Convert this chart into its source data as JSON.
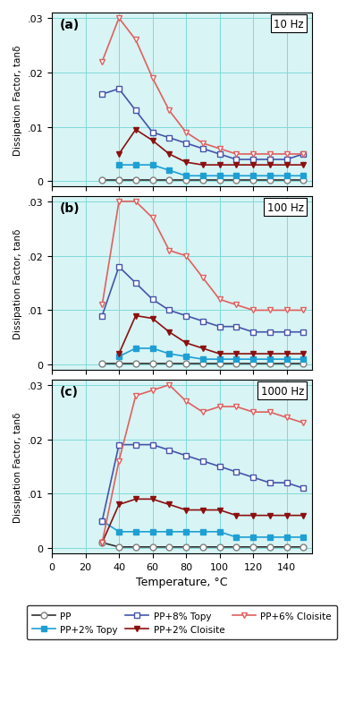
{
  "temperature": [
    30,
    40,
    50,
    60,
    70,
    80,
    90,
    100,
    110,
    120,
    130,
    140,
    150
  ],
  "panels": [
    {
      "label": "(a)",
      "freq": "10 Hz",
      "PP": [
        0.0002,
        0.0002,
        0.0002,
        0.0002,
        0.0002,
        0.0002,
        0.0002,
        0.0002,
        0.0002,
        0.0002,
        0.0002,
        0.0002,
        0.0002
      ],
      "PP2Topy": [
        null,
        0.003,
        0.003,
        0.003,
        0.002,
        0.001,
        0.001,
        0.001,
        0.001,
        0.001,
        0.001,
        0.001,
        0.001
      ],
      "PP8Topy": [
        0.016,
        0.017,
        0.013,
        0.009,
        0.008,
        0.007,
        0.006,
        0.005,
        0.004,
        0.004,
        0.004,
        0.004,
        0.005
      ],
      "PP2Cloisite": [
        null,
        0.005,
        0.0095,
        0.0075,
        0.005,
        0.0035,
        0.003,
        0.003,
        0.003,
        0.003,
        0.003,
        0.003,
        0.003
      ],
      "PP6Cloisite": [
        0.022,
        0.03,
        0.026,
        0.019,
        0.013,
        0.009,
        0.007,
        0.006,
        0.005,
        0.005,
        0.005,
        0.005,
        0.005
      ]
    },
    {
      "label": "(b)",
      "freq": "100 Hz",
      "PP": [
        0.0002,
        0.0002,
        0.0002,
        0.0002,
        0.0002,
        0.0002,
        0.0002,
        0.0002,
        0.0002,
        0.0002,
        0.0002,
        0.0002,
        0.0002
      ],
      "PP2Topy": [
        null,
        0.0015,
        0.003,
        0.003,
        0.002,
        0.0015,
        0.001,
        0.001,
        0.001,
        0.001,
        0.001,
        0.001,
        0.001
      ],
      "PP8Topy": [
        0.009,
        0.018,
        0.015,
        0.012,
        0.01,
        0.009,
        0.008,
        0.007,
        0.007,
        0.006,
        0.006,
        0.006,
        0.006
      ],
      "PP2Cloisite": [
        null,
        0.002,
        0.009,
        0.0085,
        0.006,
        0.004,
        0.003,
        0.002,
        0.002,
        0.002,
        0.002,
        0.002,
        0.002
      ],
      "PP6Cloisite": [
        0.011,
        0.03,
        0.03,
        0.027,
        0.021,
        0.02,
        0.016,
        0.012,
        0.011,
        0.01,
        0.01,
        0.01,
        0.01
      ]
    },
    {
      "label": "(c)",
      "freq": "1000 Hz",
      "PP": [
        0.001,
        0.0002,
        0.0002,
        0.0002,
        0.0002,
        0.0002,
        0.0002,
        0.0002,
        0.0002,
        0.0002,
        0.0002,
        0.0002,
        0.0002
      ],
      "PP2Topy": [
        0.005,
        0.003,
        0.003,
        0.003,
        0.003,
        0.003,
        0.003,
        0.003,
        0.002,
        0.002,
        0.002,
        0.002,
        0.002
      ],
      "PP8Topy": [
        0.005,
        0.019,
        0.019,
        0.019,
        0.018,
        0.017,
        0.016,
        0.015,
        0.014,
        0.013,
        0.012,
        0.012,
        0.011
      ],
      "PP2Cloisite": [
        0.001,
        0.008,
        0.009,
        0.009,
        0.008,
        0.007,
        0.007,
        0.007,
        0.006,
        0.006,
        0.006,
        0.006,
        0.006
      ],
      "PP6Cloisite": [
        0.001,
        0.016,
        0.028,
        0.029,
        0.03,
        0.027,
        0.025,
        0.026,
        0.026,
        0.025,
        0.025,
        0.024,
        0.023
      ]
    }
  ],
  "ylim": [
    -0.001,
    0.031
  ],
  "xlim": [
    0,
    155
  ],
  "yticks": [
    0,
    0.01,
    0.02,
    0.03
  ],
  "ytick_labels": [
    "0",
    ".01",
    ".02",
    ".03"
  ],
  "xticks": [
    0,
    20,
    40,
    60,
    80,
    100,
    120,
    140
  ],
  "xtick_labels": [
    "0",
    "20",
    "40",
    "60",
    "80",
    "100",
    "120",
    "140"
  ],
  "ylabel": "Dissipation Factor, tanδ",
  "xlabel": "Temperature, °C",
  "PP_color": "#808080",
  "PP_line_color": "#303030",
  "PP2Topy_color": "#1E9FD4",
  "PP2Topy_line_color": "#1E9FD4",
  "PP8Topy_color": "#4455AA",
  "PP8Topy_line_color": "#4455AA",
  "PP2Cloisite_color": "#8B1010",
  "PP2Cloisite_line_color": "#8B1010",
  "PP6Cloisite_color": "#E06060",
  "PP6Cloisite_line_color": "#E06060",
  "bg_color": "#D8F4F4",
  "grid_color": "#80DADA"
}
